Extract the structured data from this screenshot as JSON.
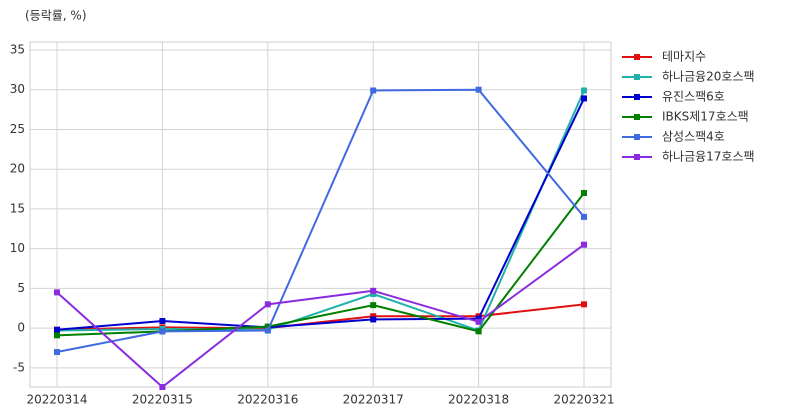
{
  "chart_data": {
    "type": "line",
    "y_label": "(등락률, %)",
    "categories": [
      "20220314",
      "20220315",
      "20220316",
      "20220317",
      "20220318",
      "20220321"
    ],
    "series": [
      {
        "name": "테마지수",
        "color": "#e01010",
        "values": [
          -0.2,
          0.1,
          0,
          1.5,
          1.5,
          3.0
        ]
      },
      {
        "name": "하나금융20호스팩",
        "color": "#20b2aa",
        "values": [
          -0.3,
          -0.1,
          -0.2,
          4.3,
          -0.3,
          29.9
        ]
      },
      {
        "name": "유진스팩6호",
        "color": "#0000cd",
        "values": [
          -0.2,
          0.9,
          0.1,
          1.1,
          1.2,
          28.9
        ]
      },
      {
        "name": "IBKS제17호스팩",
        "color": "#008000",
        "values": [
          -0.9,
          -0.4,
          0.2,
          2.9,
          -0.4,
          17.0
        ]
      },
      {
        "name": "삼성스팩4호",
        "color": "#4169e1",
        "values": [
          -3.0,
          -0.4,
          -0.3,
          29.9,
          30.0,
          14.0
        ]
      },
      {
        "name": "하나금융17호스팩",
        "color": "#8a2be2",
        "values": [
          4.5,
          -7.4,
          3.0,
          4.7,
          0.8,
          10.5
        ]
      }
    ],
    "ylim": [
      -7.4,
      36
    ],
    "yticks": [
      -5,
      0,
      5,
      10,
      15,
      20,
      25,
      30,
      35
    ],
    "grid": true,
    "legend": "right"
  }
}
